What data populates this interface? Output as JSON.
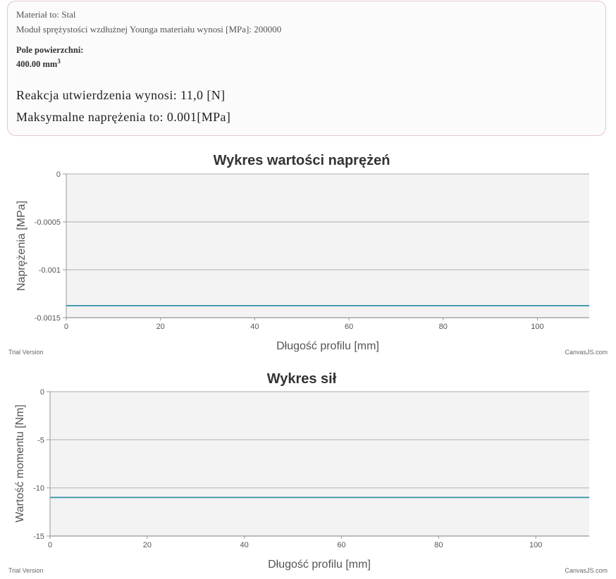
{
  "info": {
    "material_line": "Materiał to: Stal",
    "modulus_line": "Moduł sprężystości wzdłużnej Younga materiału wynosi [MPa]: 200000",
    "area_label": "Pole powierzchni:",
    "area_value": "400.00 mm",
    "area_unit_exp": "3",
    "reaction_line": "Reakcja utwierdzenia wynosi: 11,0 [N]",
    "max_stress_line": "Maksymalne naprężenia to: 0.001[MPa]"
  },
  "footer": {
    "trial": "Trial Version",
    "brand": "CanvasJS.com"
  },
  "colors": {
    "line": "#4a9bb0",
    "plot_bg": "#f3f3f3",
    "grid": "#c6c6c6"
  },
  "chart_data": [
    {
      "type": "line",
      "title": "Wykres wartości naprężeń",
      "xlabel": "Długość profilu [mm]",
      "ylabel": "Naprężenia [MPa]",
      "xlim": [
        0,
        111
      ],
      "ylim": [
        -0.0015,
        0
      ],
      "x_ticks": [
        0,
        20,
        40,
        60,
        80,
        100
      ],
      "y_ticks": [
        0,
        -0.0005,
        -0.001,
        -0.0015
      ],
      "y_tick_labels": [
        "0",
        "-0.0005",
        "-0.001",
        "-0.0015"
      ],
      "grid": true,
      "series": [
        {
          "x": [
            0,
            111
          ],
          "y": [
            -0.001375,
            -0.001375
          ]
        }
      ]
    },
    {
      "type": "line",
      "title": "Wykres sił",
      "xlabel": "Długość profilu [mm]",
      "ylabel": "Wartość momentu [Nm]",
      "xlim": [
        0,
        111
      ],
      "ylim": [
        -15,
        0
      ],
      "x_ticks": [
        0,
        20,
        40,
        60,
        80,
        100
      ],
      "y_ticks": [
        0,
        -5,
        -10,
        -15
      ],
      "y_tick_labels": [
        "0",
        "-5",
        "-10",
        "-15"
      ],
      "grid": true,
      "series": [
        {
          "x": [
            0,
            111
          ],
          "y": [
            -11,
            -11
          ]
        }
      ]
    }
  ]
}
